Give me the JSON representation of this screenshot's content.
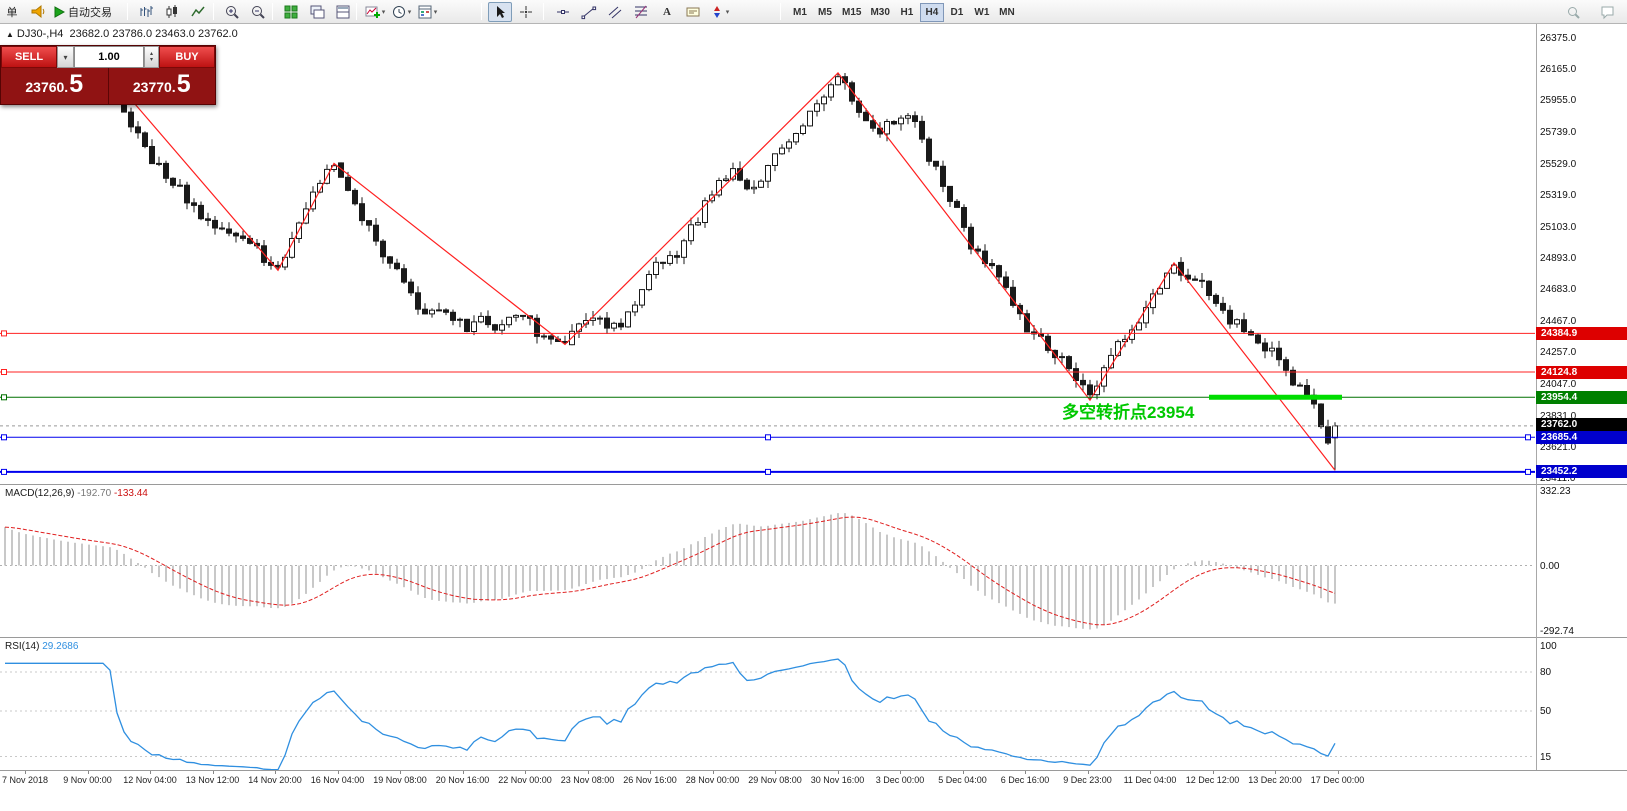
{
  "toolbar": {
    "order_label": "单",
    "autotrade_label": "自动交易",
    "icons": [
      "new-order",
      "news-horn",
      "autotrade-play",
      "chart-bars",
      "chart-candles",
      "chart-line",
      "zoom-in",
      "zoom-out",
      "tile-windows",
      "cascade-windows",
      "tile-horizontal",
      "indicators",
      "periods",
      "templates",
      "cursor",
      "crosshair",
      "horizontal-line",
      "trendline",
      "equidistant-channel",
      "fibonacci",
      "text",
      "text-label",
      "arrows",
      "search",
      "chat"
    ],
    "timeframes": [
      "M1",
      "M5",
      "M15",
      "M30",
      "H1",
      "H4",
      "D1",
      "W1",
      "MN"
    ],
    "active_timeframe": "H4"
  },
  "trade_panel": {
    "sell_label": "SELL",
    "buy_label": "BUY",
    "volume": "1.00",
    "sell_price_small": "23760.",
    "sell_price_big": "5",
    "buy_price_small": "23770.",
    "buy_price_big": "5"
  },
  "chart": {
    "title_symbol": "DJ30-,H4",
    "title_ohlc": "23682.0 23786.0 23463.0 23762.0",
    "annotation": {
      "text": "多空转折点23954",
      "color": "#00c800"
    },
    "current_price_tag": {
      "label": "23762.0",
      "color": "#000000"
    },
    "axis_labels": [
      "26375.0",
      "26165.0",
      "25955.0",
      "25739.0",
      "25529.0",
      "25319.0",
      "25103.0",
      "24893.0",
      "24683.0",
      "24467.0",
      "24257.0",
      "24047.0",
      "23831.0",
      "23621.0",
      "23411.0"
    ],
    "levels": [
      {
        "price": 24384.9,
        "label": "24384.9",
        "line_color": "#ff2222",
        "tag_color": "#dd0000",
        "width": 1,
        "handles": [
          "left"
        ]
      },
      {
        "price": 24124.8,
        "label": "24124.8",
        "line_color": "#ff2222",
        "tag_color": "#dd0000",
        "width": 1,
        "handles": [
          "left"
        ]
      },
      {
        "price": 23954.4,
        "label": "23954.4",
        "line_color": "#007000",
        "tag_color": "#008000",
        "width": 1,
        "handles": [
          "left"
        ]
      },
      {
        "price": 23685.4,
        "label": "23685.4",
        "line_color": "#0000ee",
        "tag_color": "#0000cc",
        "width": 1,
        "handles": [
          "left",
          "mid",
          "right"
        ]
      },
      {
        "price": 23452.2,
        "label": "23452.2",
        "line_color": "#0000ee",
        "tag_color": "#0000cc",
        "width": 2,
        "handles": [
          "left",
          "mid",
          "right"
        ]
      }
    ],
    "trend_segment": {
      "price": 23954.4,
      "bar_start": 172,
      "bar_end": 191,
      "color": "#00dd00",
      "width": 5
    }
  },
  "chart_data": {
    "type": "candlestick",
    "symbol": "DJ30-",
    "timeframe": "H4",
    "bars": 191,
    "last_bar": {
      "open": 23682.0,
      "high": 23786.0,
      "low": 23463.0,
      "close": 23762.0
    },
    "price_axis": {
      "min": 23411.0,
      "max": 26375.0
    },
    "zigzag": [
      [
        0,
        25980,
        "s"
      ],
      [
        15,
        26126,
        "h"
      ],
      [
        39,
        24810,
        "l"
      ],
      [
        47,
        25530,
        "h"
      ],
      [
        80,
        24310,
        "l"
      ],
      [
        119,
        26140,
        "h"
      ],
      [
        155,
        23935,
        "l"
      ],
      [
        167,
        24860,
        "h"
      ],
      [
        190,
        23463,
        "l"
      ]
    ],
    "path": [
      [
        0,
        25980
      ],
      [
        5,
        26060
      ],
      [
        10,
        26100
      ],
      [
        15,
        26126
      ],
      [
        18,
        25800
      ],
      [
        20,
        25620
      ],
      [
        22,
        25500
      ],
      [
        24,
        25430
      ],
      [
        26,
        25300
      ],
      [
        28,
        25160
      ],
      [
        30,
        25120
      ],
      [
        33,
        25040
      ],
      [
        36,
        24930
      ],
      [
        39,
        24810
      ],
      [
        41,
        25000
      ],
      [
        43,
        25240
      ],
      [
        45,
        25400
      ],
      [
        47,
        25530
      ],
      [
        49,
        25330
      ],
      [
        52,
        25080
      ],
      [
        55,
        24840
      ],
      [
        57,
        24720
      ],
      [
        60,
        24530
      ],
      [
        63,
        24480
      ],
      [
        66,
        24430
      ],
      [
        68,
        24470
      ],
      [
        70,
        24430
      ],
      [
        72,
        24500
      ],
      [
        74,
        24480
      ],
      [
        76,
        24410
      ],
      [
        78,
        24380
      ],
      [
        80,
        24310
      ],
      [
        82,
        24420
      ],
      [
        84,
        24520
      ],
      [
        86,
        24440
      ],
      [
        88,
        24440
      ],
      [
        90,
        24620
      ],
      [
        93,
        24820
      ],
      [
        96,
        24940
      ],
      [
        98,
        25070
      ],
      [
        100,
        25260
      ],
      [
        102,
        25400
      ],
      [
        104,
        25460
      ],
      [
        106,
        25350
      ],
      [
        108,
        25380
      ],
      [
        110,
        25570
      ],
      [
        112,
        25650
      ],
      [
        114,
        25800
      ],
      [
        116,
        25900
      ],
      [
        118,
        26060
      ],
      [
        119,
        26140
      ],
      [
        121,
        25980
      ],
      [
        123,
        25840
      ],
      [
        125,
        25760
      ],
      [
        127,
        25820
      ],
      [
        129,
        25860
      ],
      [
        131,
        25680
      ],
      [
        133,
        25480
      ],
      [
        135,
        25300
      ],
      [
        137,
        25080
      ],
      [
        139,
        24920
      ],
      [
        141,
        24880
      ],
      [
        143,
        24680
      ],
      [
        145,
        24480
      ],
      [
        147,
        24380
      ],
      [
        149,
        24300
      ],
      [
        151,
        24240
      ],
      [
        153,
        24060
      ],
      [
        155,
        23935
      ],
      [
        157,
        24120
      ],
      [
        159,
        24300
      ],
      [
        161,
        24440
      ],
      [
        163,
        24560
      ],
      [
        165,
        24700
      ],
      [
        167,
        24860
      ],
      [
        169,
        24760
      ],
      [
        171,
        24700
      ],
      [
        173,
        24560
      ],
      [
        175,
        24480
      ],
      [
        177,
        24380
      ],
      [
        179,
        24300
      ],
      [
        181,
        24240
      ],
      [
        183,
        24130
      ],
      [
        185,
        24000
      ],
      [
        187,
        23880
      ],
      [
        188,
        23800
      ],
      [
        189,
        23650
      ],
      [
        190,
        23682
      ]
    ],
    "indicators": [
      {
        "name": "MACD",
        "params": [
          12,
          26,
          9
        ]
      },
      {
        "name": "RSI",
        "params": [
          14
        ]
      }
    ]
  },
  "macd": {
    "label": "MACD(12,26,9)",
    "value_main": "-192.70",
    "value_signal": "-133.44",
    "axis": [
      "332.23",
      "0.00",
      "-292.74"
    ],
    "histogram_color": "#c8c8c8",
    "signal_color": "#e02020"
  },
  "rsi": {
    "label": "RSI(14)",
    "value": "29.2686",
    "axis": [
      "100",
      "80",
      "50",
      "15"
    ],
    "line_color": "#2f8fe0"
  },
  "time_axis": [
    "7 Nov 2018",
    "9 Nov 00:00",
    "12 Nov 04:00",
    "13 Nov 12:00",
    "14 Nov 20:00",
    "16 Nov 04:00",
    "19 Nov 08:00",
    "20 Nov 16:00",
    "22 Nov 00:00",
    "23 Nov 08:00",
    "26 Nov 16:00",
    "28 Nov 00:00",
    "29 Nov 08:00",
    "30 Nov 16:00",
    "3 Dec 00:00",
    "5 Dec 04:00",
    "6 Dec 16:00",
    "9 Dec 23:00",
    "11 Dec 04:00",
    "12 Dec 12:00",
    "13 Dec 20:00",
    "17 Dec 00:00"
  ]
}
